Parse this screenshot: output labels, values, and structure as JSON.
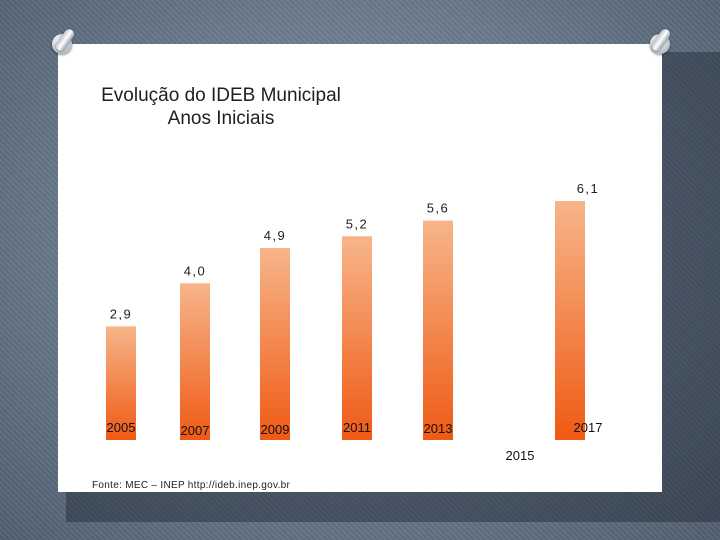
{
  "source_note": "Fonte: MEC – INEP  http://ideb.inep.gov.br",
  "colors": {
    "bar_top": "#f7b58a",
    "bar_bottom": "#ef5a14"
  },
  "chart_data": {
    "type": "bar",
    "title": "Evolução do IDEB Municipal Anos Iniciais",
    "categories": [
      "2005",
      "2007",
      "2009",
      "2011",
      "2013",
      "2015",
      "2017"
    ],
    "values": [
      2.9,
      4.0,
      4.9,
      5.2,
      5.6,
      null,
      6.1
    ],
    "value_labels": [
      "2,9",
      "4,0",
      "4,9",
      "5,2",
      "5,6",
      "",
      "6,1"
    ],
    "xlabel": "",
    "ylabel": "",
    "ylim": [
      0,
      6.1
    ],
    "grid": false,
    "legend": "none"
  }
}
